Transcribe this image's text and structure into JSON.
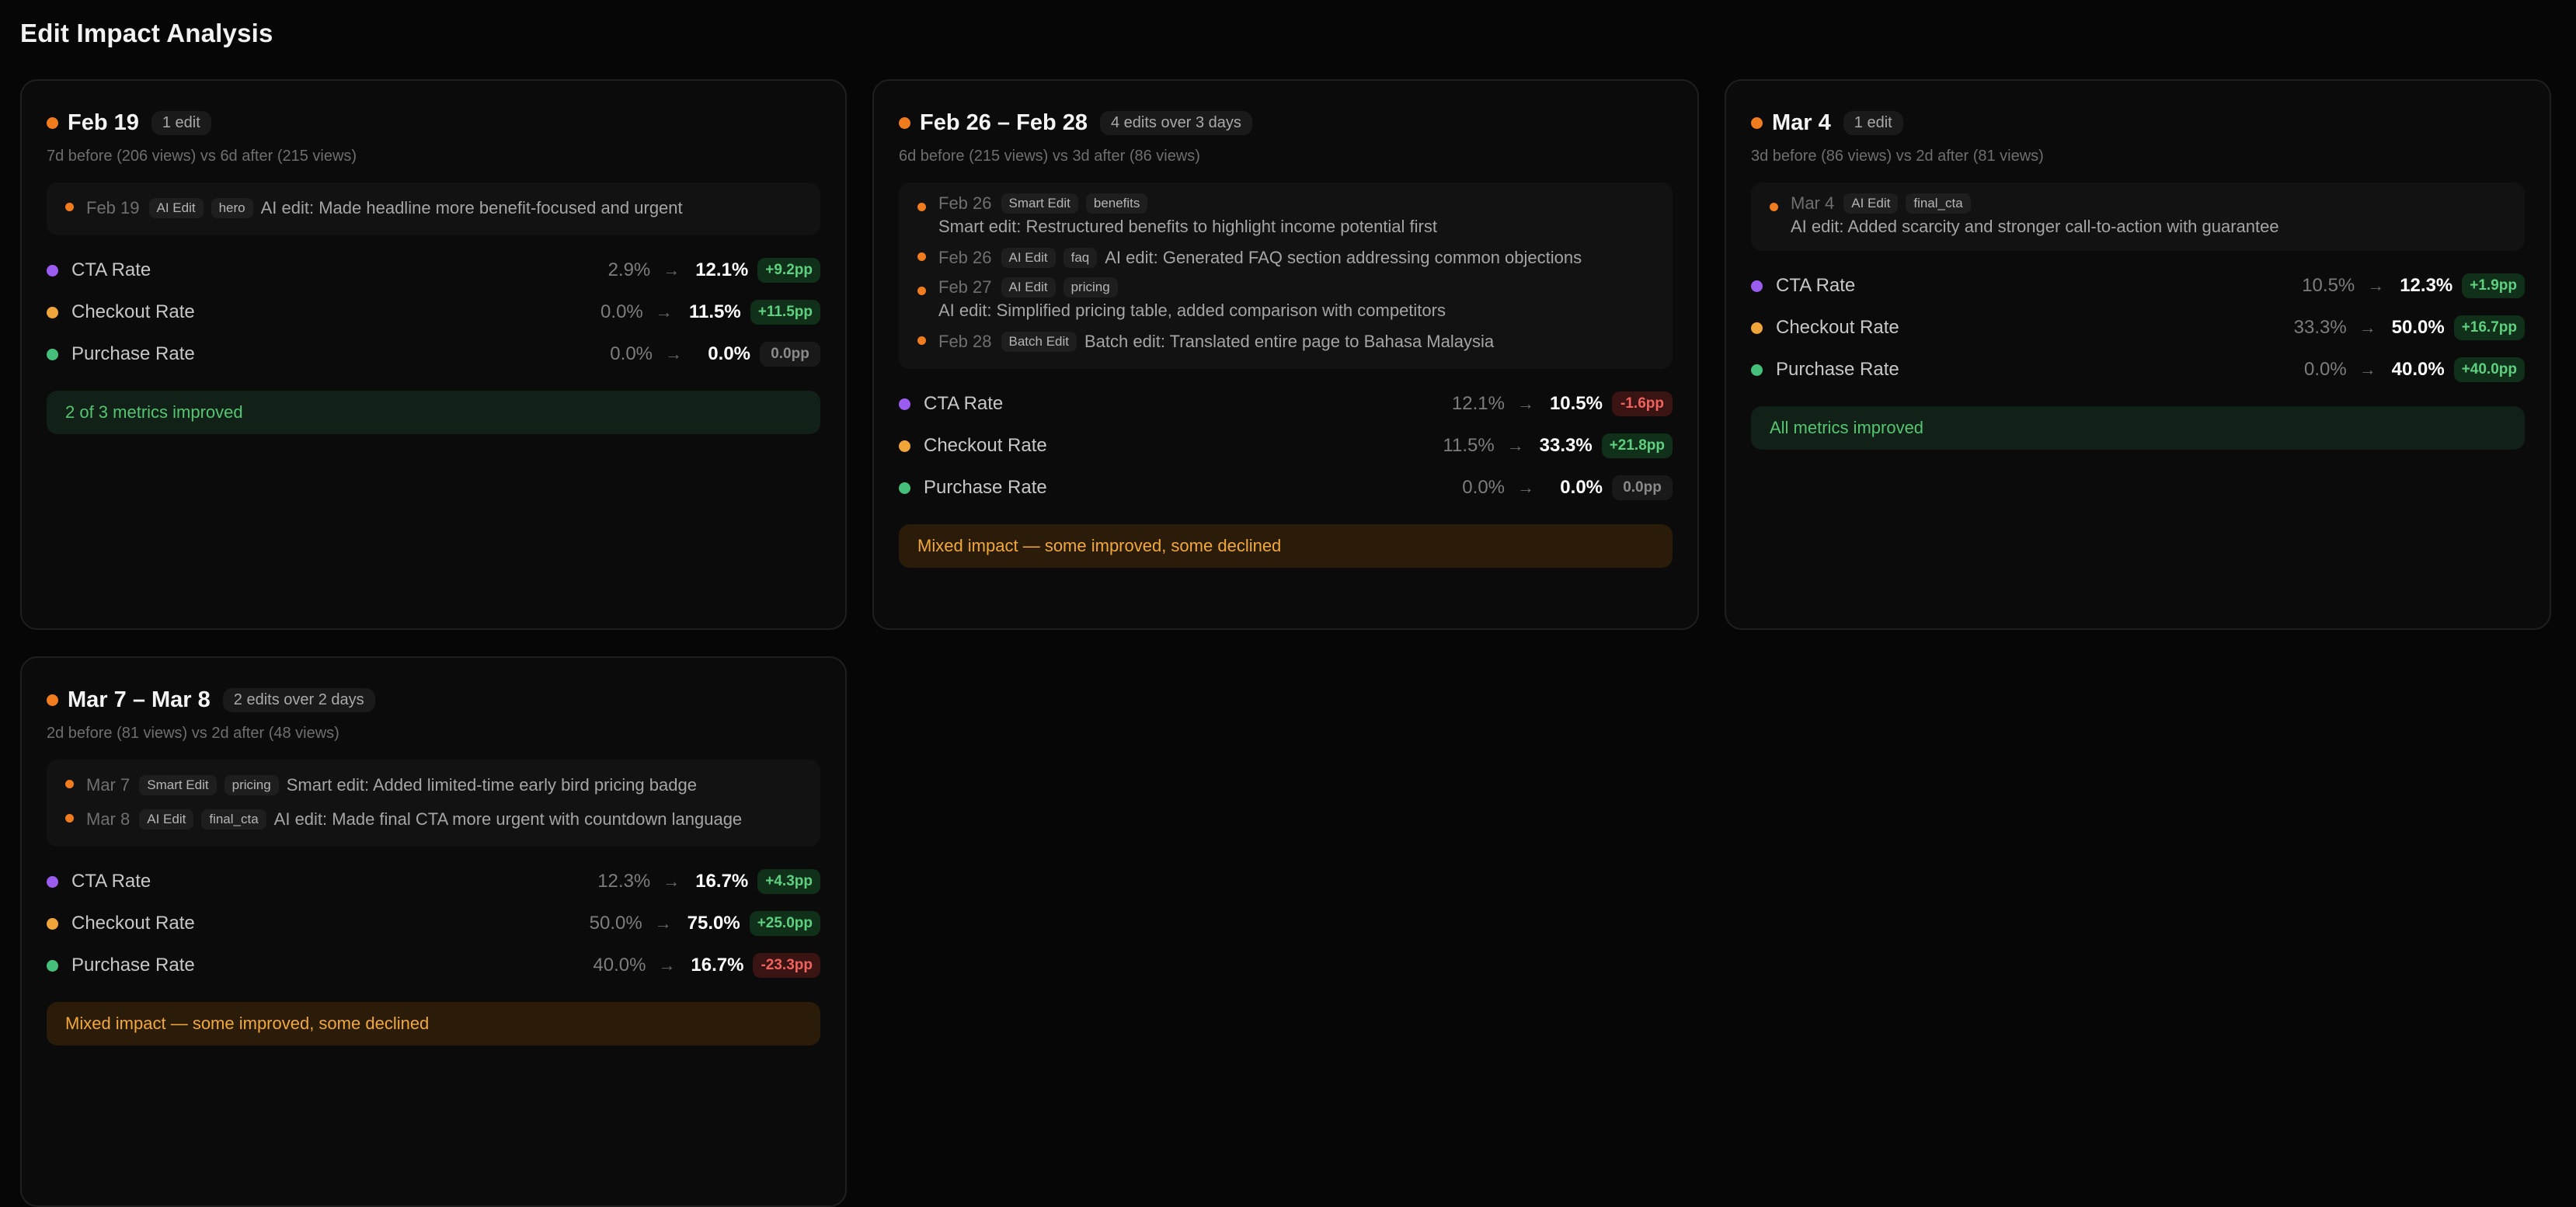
{
  "page_title": "Edit Impact Analysis",
  "colors": {
    "accent_orange": "#f07c1e",
    "cta": "#9b5cf0",
    "checkout": "#f0a53a",
    "purchase": "#45c07a",
    "positive": "#5fd07f",
    "negative": "#f0625e",
    "mixed": "#f2a83a"
  },
  "cards": [
    {
      "date": "Feb 19",
      "edit_count": "1 edit",
      "period": "7d before (206 views) vs 6d after (215 views)",
      "edits": [
        {
          "date": "Feb 19",
          "type": "AI Edit",
          "section": "hero",
          "desc": "AI edit: Made headline more benefit-focused and urgent",
          "wrap": false
        }
      ],
      "metrics": {
        "cta": {
          "label": "CTA Rate",
          "before": "2.9%",
          "after": "12.1%",
          "delta": "+9.2pp",
          "trend": "up"
        },
        "checkout": {
          "label": "Checkout Rate",
          "before": "0.0%",
          "after": "11.5%",
          "delta": "+11.5pp",
          "trend": "up"
        },
        "purchase": {
          "label": "Purchase Rate",
          "before": "0.0%",
          "after": "0.0%",
          "delta": "0.0pp",
          "trend": "flat"
        }
      },
      "summary": {
        "text": "2 of 3 metrics improved",
        "tone": "good"
      }
    },
    {
      "date": "Feb 26 – Feb 28",
      "edit_count": "4 edits over 3 days",
      "period": "6d before (215 views) vs 3d after (86 views)",
      "edits": [
        {
          "date": "Feb 26",
          "type": "Smart Edit",
          "section": "benefits",
          "desc": "Smart edit: Restructured benefits to highlight income potential first",
          "wrap": true
        },
        {
          "date": "Feb 26",
          "type": "AI Edit",
          "section": "faq",
          "desc": "AI edit: Generated FAQ section addressing common objections",
          "wrap": false
        },
        {
          "date": "Feb 27",
          "type": "AI Edit",
          "section": "pricing",
          "desc": "AI edit: Simplified pricing table, added comparison with competitors",
          "wrap": true
        },
        {
          "date": "Feb 28",
          "type": "Batch Edit",
          "section": "",
          "desc": "Batch edit: Translated entire page to Bahasa Malaysia",
          "wrap": false
        }
      ],
      "metrics": {
        "cta": {
          "label": "CTA Rate",
          "before": "12.1%",
          "after": "10.5%",
          "delta": "-1.6pp",
          "trend": "down"
        },
        "checkout": {
          "label": "Checkout Rate",
          "before": "11.5%",
          "after": "33.3%",
          "delta": "+21.8pp",
          "trend": "up"
        },
        "purchase": {
          "label": "Purchase Rate",
          "before": "0.0%",
          "after": "0.0%",
          "delta": "0.0pp",
          "trend": "flat"
        }
      },
      "summary": {
        "text": "Mixed impact — some improved, some declined",
        "tone": "mixed"
      }
    },
    {
      "date": "Mar 4",
      "edit_count": "1 edit",
      "period": "3d before (86 views) vs 2d after (81 views)",
      "edits": [
        {
          "date": "Mar 4",
          "type": "AI Edit",
          "section": "final_cta",
          "desc": "AI edit: Added scarcity and stronger call-to-action with guarantee",
          "wrap": true
        }
      ],
      "metrics": {
        "cta": {
          "label": "CTA Rate",
          "before": "10.5%",
          "after": "12.3%",
          "delta": "+1.9pp",
          "trend": "up"
        },
        "checkout": {
          "label": "Checkout Rate",
          "before": "33.3%",
          "after": "50.0%",
          "delta": "+16.7pp",
          "trend": "up"
        },
        "purchase": {
          "label": "Purchase Rate",
          "before": "0.0%",
          "after": "40.0%",
          "delta": "+40.0pp",
          "trend": "up"
        }
      },
      "summary": {
        "text": "All metrics improved",
        "tone": "good"
      }
    },
    {
      "date": "Mar 7 – Mar 8",
      "edit_count": "2 edits over 2 days",
      "period": "2d before (81 views) vs 2d after (48 views)",
      "edits": [
        {
          "date": "Mar 7",
          "type": "Smart Edit",
          "section": "pricing",
          "desc": "Smart edit: Added limited-time early bird pricing badge",
          "wrap": false
        },
        {
          "date": "Mar 8",
          "type": "AI Edit",
          "section": "final_cta",
          "desc": "AI edit: Made final CTA more urgent with countdown language",
          "wrap": false
        }
      ],
      "metrics": {
        "cta": {
          "label": "CTA Rate",
          "before": "12.3%",
          "after": "16.7%",
          "delta": "+4.3pp",
          "trend": "up"
        },
        "checkout": {
          "label": "Checkout Rate",
          "before": "50.0%",
          "after": "75.0%",
          "delta": "+25.0pp",
          "trend": "up"
        },
        "purchase": {
          "label": "Purchase Rate",
          "before": "40.0%",
          "after": "16.7%",
          "delta": "-23.3pp",
          "trend": "down"
        }
      },
      "summary": {
        "text": "Mixed impact — some improved, some declined",
        "tone": "mixed"
      }
    }
  ]
}
